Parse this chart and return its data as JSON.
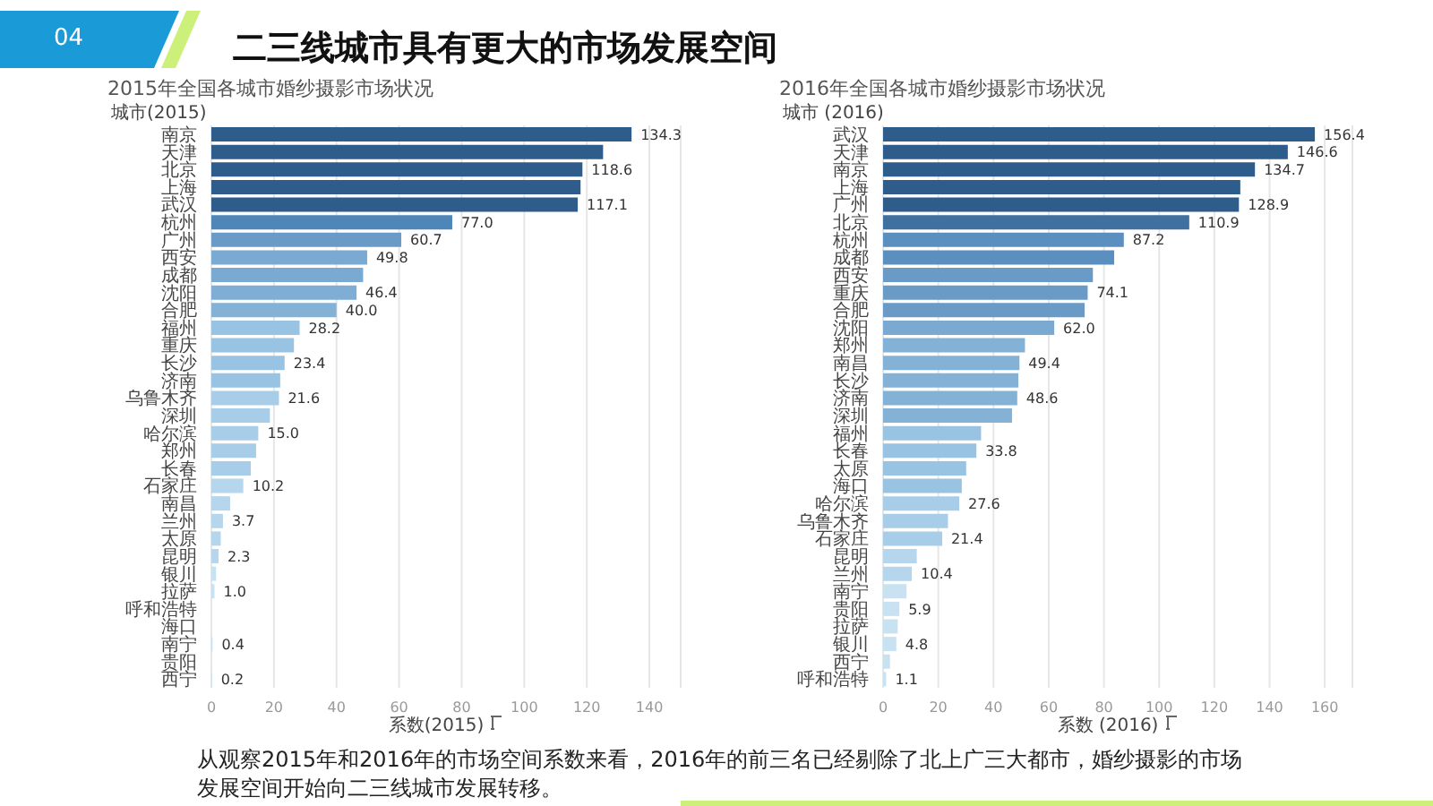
{
  "chart_data": [
    {
      "type": "other",
      "title": "二三线城市具有更大的市场发展空间",
      "annotations": [
        "04",
        "从观察2015年和2016年的市场空间系数来看，2016年的前三名已经剔除了北上广三大都市，婚纱摄影的市场发展空间开始向二三线城市发展转移。"
      ]
    },
    {
      "type": "bar",
      "orientation": "horizontal",
      "title": "2015年全国各城市婚纱摄影市场状况",
      "ylabel": "城市(2015)",
      "xlabel": "系数(2015)",
      "grid": "x",
      "xlim": [
        0,
        150
      ],
      "xticks": [
        0,
        20,
        40,
        60,
        80,
        100,
        120,
        140
      ],
      "categories": [
        "南京",
        "天津",
        "北京",
        "上海",
        "武汉",
        "杭州",
        "广州",
        "西安",
        "成都",
        "沈阳",
        "合肥",
        "福州",
        "重庆",
        "长沙",
        "济南",
        "乌鲁木齐",
        "深圳",
        "哈尔滨",
        "郑州",
        "长春",
        "石家庄",
        "南昌",
        "兰州",
        "太原",
        "昆明",
        "银川",
        "拉萨",
        "呼和浩特",
        "海口",
        "南宁",
        "贵阳",
        "西宁"
      ],
      "values": [
        134.3,
        125.2,
        118.6,
        118.0,
        117.1,
        77.0,
        60.7,
        49.8,
        48.5,
        46.4,
        40.0,
        28.2,
        26.4,
        23.4,
        22.0,
        21.6,
        18.7,
        15.0,
        14.3,
        12.6,
        10.2,
        6.0,
        3.7,
        3.0,
        2.3,
        1.5,
        1.0,
        null,
        null,
        0.4,
        null,
        0.2
      ],
      "value_labels": [
        "134.3",
        null,
        "118.6",
        null,
        "117.1",
        "77.0",
        "60.7",
        "49.8",
        null,
        "46.4",
        "40.0",
        "28.2",
        null,
        "23.4",
        null,
        "21.6",
        null,
        "15.0",
        null,
        null,
        "10.2",
        null,
        "3.7",
        null,
        "2.3",
        null,
        "1.0",
        null,
        null,
        "0.4",
        null,
        "0.2"
      ],
      "colors": [
        "#2e5d8c",
        "#2e5d8c",
        "#2e5d8c",
        "#2e5d8c",
        "#2e5d8c",
        "#4f86b8",
        "#6a9ac6",
        "#7aa9d2",
        "#7aa9d2",
        "#7fadd4",
        "#84b2d7",
        "#99c3e2",
        "#99c3e2",
        "#99c3e2",
        "#99c3e2",
        "#a8cde8",
        "#a8cde8",
        "#a8cde8",
        "#a8cde8",
        "#a8cde8",
        "#b5d6ec",
        "#b5d6ec",
        "#b5d6ec",
        "#b5d6ec",
        "#b5d6ec",
        "#c9e2f2",
        "#c9e2f2",
        "#c9e2f2",
        "#c9e2f2",
        "#c9e2f2",
        "#c9e2f2",
        "#c9e2f2"
      ]
    },
    {
      "type": "bar",
      "orientation": "horizontal",
      "title": "2016年全国各城市婚纱摄影市场状况",
      "ylabel": "城市 (2016)",
      "xlabel": "系数 (2016)",
      "grid": "x",
      "xlim": [
        0,
        170
      ],
      "xticks": [
        0,
        20,
        40,
        60,
        80,
        100,
        120,
        140,
        160
      ],
      "categories": [
        "武汉",
        "天津",
        "南京",
        "上海",
        "广州",
        "北京",
        "杭州",
        "成都",
        "西安",
        "重庆",
        "合肥",
        "沈阳",
        "郑州",
        "南昌",
        "长沙",
        "济南",
        "深圳",
        "福州",
        "长春",
        "太原",
        "海口",
        "哈尔滨",
        "乌鲁木齐",
        "石家庄",
        "昆明",
        "兰州",
        "南宁",
        "贵阳",
        "拉萨",
        "银川",
        "西宁",
        "呼和浩特"
      ],
      "values": [
        156.4,
        146.6,
        134.7,
        129.4,
        128.9,
        110.9,
        87.2,
        83.7,
        76.0,
        74.1,
        73.0,
        62.0,
        51.4,
        49.4,
        49.0,
        48.6,
        46.7,
        35.5,
        33.8,
        30.1,
        28.5,
        27.6,
        23.5,
        21.4,
        12.2,
        10.4,
        8.5,
        5.9,
        5.3,
        4.8,
        2.5,
        1.1
      ],
      "value_labels": [
        "156.4",
        "146.6",
        "134.7",
        null,
        "128.9",
        "110.9",
        "87.2",
        null,
        null,
        "74.1",
        null,
        "62.0",
        null,
        "49.4",
        null,
        "48.6",
        null,
        null,
        "33.8",
        null,
        null,
        "27.6",
        null,
        "21.4",
        null,
        "10.4",
        null,
        "5.9",
        null,
        "4.8",
        null,
        "1.1"
      ],
      "colors": [
        "#2e5d8c",
        "#2e5d8c",
        "#2e5d8c",
        "#2e5d8c",
        "#2e5d8c",
        "#3f70a0",
        "#5a8fbf",
        "#5a8fbf",
        "#6a9ac6",
        "#6a9ac6",
        "#6a9ac6",
        "#7aa9d2",
        "#84b2d7",
        "#84b2d7",
        "#84b2d7",
        "#84b2d7",
        "#84b2d7",
        "#99c3e2",
        "#99c3e2",
        "#99c3e2",
        "#99c3e2",
        "#a8cde8",
        "#a8cde8",
        "#a8cde8",
        "#b5d6ec",
        "#b5d6ec",
        "#c9e2f2",
        "#c9e2f2",
        "#c9e2f2",
        "#c9e2f2",
        "#c9e2f2",
        "#c9e2f2"
      ]
    }
  ]
}
